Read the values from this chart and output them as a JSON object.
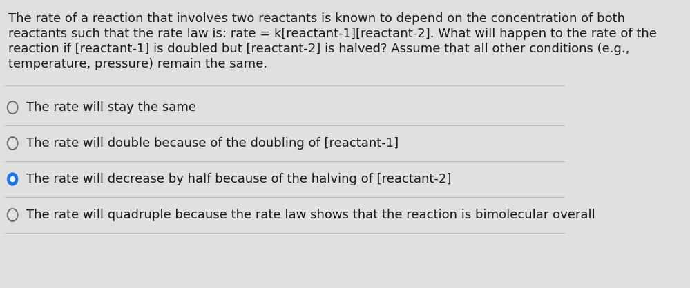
{
  "background_color": "#e0e0e0",
  "question_text_lines": [
    "The rate of a reaction that involves two reactants is known to depend on the concentration of both",
    "reactants such that the rate law is: rate = k[reactant-1][reactant-2]. What will happen to the rate of the",
    "reaction if [reactant-1] is doubled but [reactant-2] is halved? Assume that all other conditions (e.g.,",
    "temperature, pressure) remain the same."
  ],
  "options": [
    {
      "text": "The rate will stay the same",
      "selected": false
    },
    {
      "text": "The rate will double because of the doubling of [reactant-1]",
      "selected": false
    },
    {
      "text": "The rate will decrease by half because of the halving of [reactant-2]",
      "selected": true
    },
    {
      "text": "The rate will quadruple because the rate law shows that the reaction is bimolecular overall",
      "selected": false
    }
  ],
  "text_color": "#1a1a1a",
  "option_text_color": "#1a1a1a",
  "radio_unselected_edgecolor": "#666666",
  "radio_selected_fill": "#1a73e8",
  "divider_color": "#bbbbbb",
  "font_size_question": 13.0,
  "font_size_option": 13.0
}
